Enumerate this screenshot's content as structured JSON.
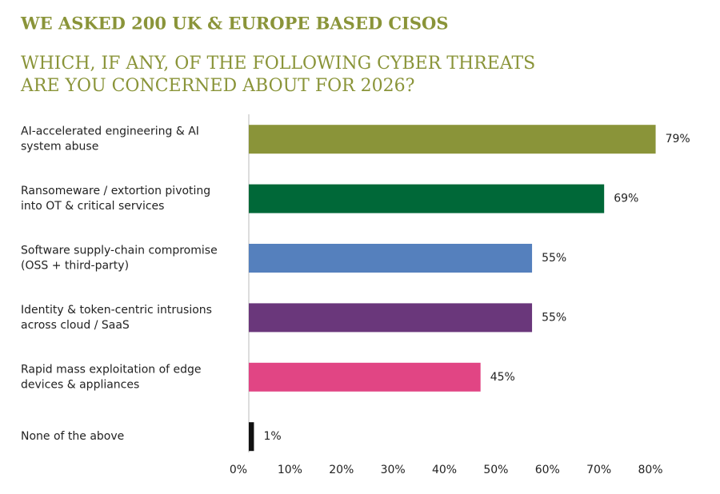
{
  "chart_data": {
    "type": "bar",
    "orientation": "horizontal",
    "title": "WE ASKED 200 UK & EUROPE BASED CISOS",
    "subtitle": [
      "WHICH, IF ANY, OF THE FOLLOWING CYBER THREATS",
      "ARE YOU CONCERNED ABOUT FOR 2026?"
    ],
    "categories": [
      [
        "AI-accelerated engineering & AI",
        "system abuse"
      ],
      [
        "Ransomeware / extortion pivoting",
        "into OT & critical services"
      ],
      [
        "Software supply-chain compromise",
        "(OSS + third-party)"
      ],
      [
        "Identity & token-centric intrusions",
        "across cloud / SaaS"
      ],
      [
        "Rapid mass exploitation of edge",
        "devices & appliances"
      ],
      [
        "None of the above"
      ]
    ],
    "values": [
      79,
      69,
      55,
      55,
      45,
      1
    ],
    "value_labels": [
      "79%",
      "69%",
      "55%",
      "55%",
      "45%",
      "1%"
    ],
    "colors": [
      "#8a9439",
      "#006838",
      "#5580bd",
      "#6a377b",
      "#e14584",
      "#111111"
    ],
    "xlim": [
      0,
      80
    ],
    "xticks": [
      {
        "value": 0,
        "label": "0%"
      },
      {
        "value": 10,
        "label": "10%"
      },
      {
        "value": 20,
        "label": "20%"
      },
      {
        "value": 30,
        "label": "30%"
      },
      {
        "value": 40,
        "label": "40%"
      },
      {
        "value": 50,
        "label": "50%"
      },
      {
        "value": 60,
        "label": "60%"
      },
      {
        "value": 70,
        "label": "70%"
      },
      {
        "value": 80,
        "label": "80%"
      }
    ]
  }
}
